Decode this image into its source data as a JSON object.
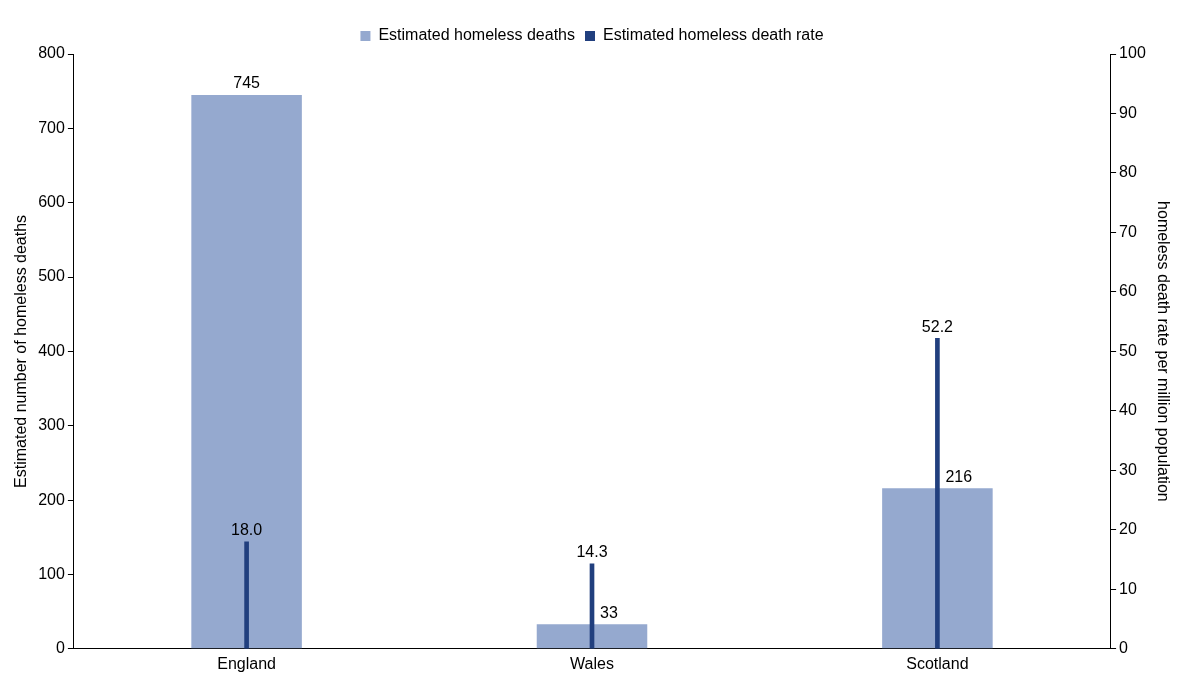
{
  "chart_data": {
    "type": "bar",
    "categories": [
      "England",
      "Wales",
      "Scotland"
    ],
    "ylabel": "Estimated number of homeless deaths",
    "y2label": "homeless death rate per million population",
    "ylim": [
      0,
      800
    ],
    "yticks": [
      0,
      100,
      200,
      300,
      400,
      500,
      600,
      700,
      800
    ],
    "y2lim": [
      0,
      100
    ],
    "y2ticks": [
      0,
      10,
      20,
      30,
      40,
      50,
      60,
      70,
      80,
      90,
      100
    ],
    "grid": false,
    "legend": "top",
    "series": [
      {
        "name": "Estimated homeless deaths",
        "color": "#95a9cf",
        "values": [
          745,
          33,
          216
        ],
        "value_labels": [
          "745",
          "33",
          "216"
        ]
      },
      {
        "name": "Estimated homeless death rate",
        "color": "#213f7e",
        "axis": "y2",
        "values": [
          18.0,
          14.3,
          52.2
        ],
        "value_labels": [
          "18.0",
          "14.3",
          "52.2"
        ]
      }
    ]
  }
}
